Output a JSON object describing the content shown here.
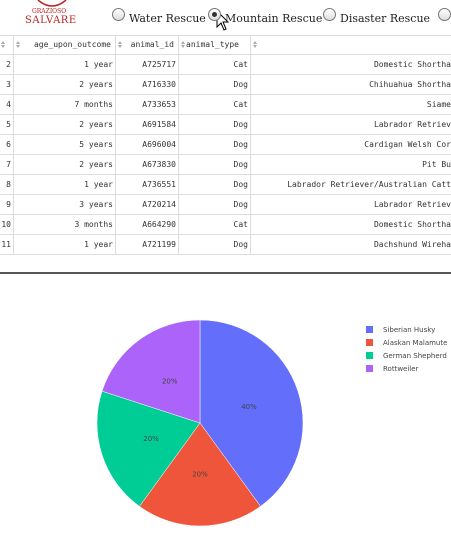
{
  "header": {
    "logo": [
      "GRAZIOSO",
      "SALVARE"
    ]
  },
  "radio": {
    "options": [
      "Water Rescue",
      "Mountain Rescue",
      "Disaster Rescue"
    ],
    "selected": 1
  },
  "table": {
    "columns": [
      "age_upon_outcome",
      "animal_id",
      "animal_type"
    ],
    "rows": [
      [
        2,
        "1 year",
        "A725717",
        "Cat",
        "Domestic Shortha"
      ],
      [
        3,
        "2 years",
        "A716330",
        "Dog",
        "Chihuahua Shortha"
      ],
      [
        4,
        "7 months",
        "A733653",
        "Cat",
        "Siame"
      ],
      [
        5,
        "2 years",
        "A691584",
        "Dog",
        "Labrador Retriev"
      ],
      [
        6,
        "5 years",
        "A696004",
        "Dog",
        "Cardigan Welsh Cor"
      ],
      [
        7,
        "2 years",
        "A673830",
        "Dog",
        "Pit Bu"
      ],
      [
        8,
        "1 year",
        "A736551",
        "Dog",
        "Labrador Retriever/Australian Catt"
      ],
      [
        9,
        "3 years",
        "A720214",
        "Dog",
        "Labrador Retriev"
      ],
      [
        10,
        "3 months",
        "A664290",
        "Cat",
        "Domestic Shortha"
      ],
      [
        11,
        "1 year",
        "A721199",
        "Dog",
        "Dachshund Wireha"
      ]
    ]
  },
  "chart_data": {
    "type": "pie",
    "categories": [
      "Siberian Husky",
      "Alaskan Malamute",
      "German Shepherd",
      "Rottweiler"
    ],
    "values": [
      40,
      20,
      20,
      20
    ],
    "value_labels": [
      "40%",
      "20%",
      "20%",
      "20%"
    ],
    "colors": [
      "#636efa",
      "#ef553b",
      "#00cc96",
      "#ab63fa"
    ],
    "legend": "top-right"
  }
}
